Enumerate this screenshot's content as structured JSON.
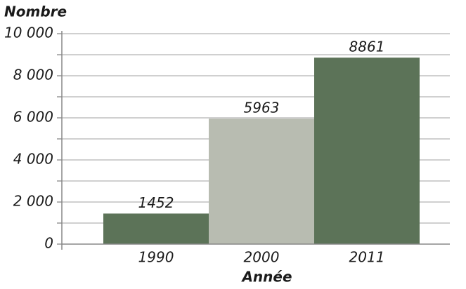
{
  "chart_data": {
    "type": "bar",
    "y_label": "Nombre",
    "x_label": "Année",
    "categories": [
      "1990",
      "2000",
      "2011"
    ],
    "values": [
      1452,
      5963,
      8861
    ],
    "colors": [
      "#5c7358",
      "#b8bcb1",
      "#5c7358"
    ],
    "ylim": [
      0,
      10000
    ],
    "yticks": [
      0,
      {
        "value": 2000,
        "label": "2 000"
      },
      {
        "value": 4000,
        "label": "4 000"
      },
      {
        "value": 6000,
        "label": "6 000"
      },
      {
        "value": 8000,
        "label": "8 000"
      },
      {
        "value": 10000,
        "label": "10 000"
      }
    ],
    "minor_yticks": [
      1000,
      3000,
      5000,
      7000,
      9000
    ],
    "grid": true
  }
}
